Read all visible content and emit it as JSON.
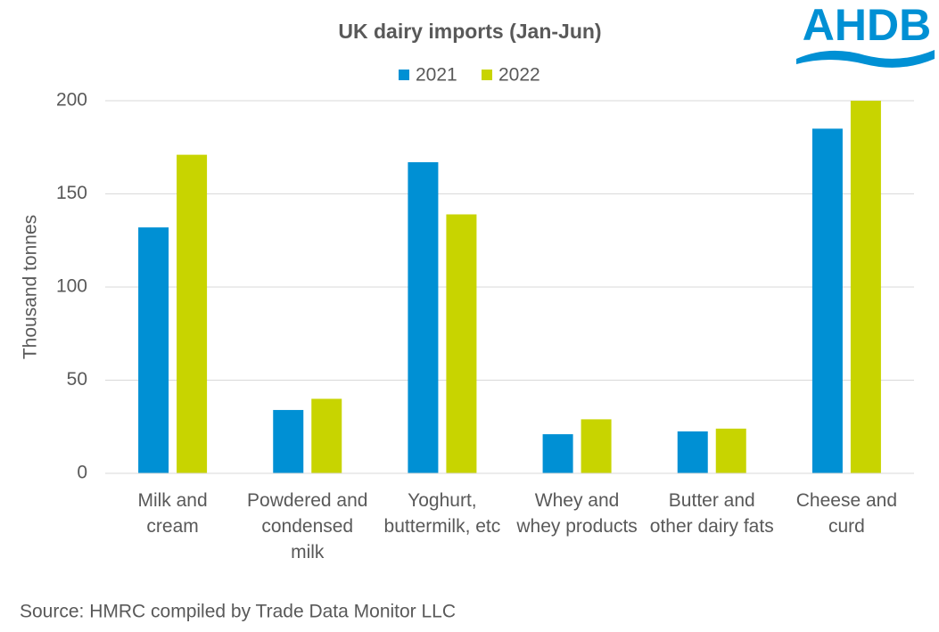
{
  "chart_data": {
    "type": "bar",
    "title": "UK dairy imports (Jan-Jun)",
    "y_label": "Thousand tonnes",
    "categories": [
      "Milk and cream",
      "Powdered and condensed milk",
      "Yoghurt, buttermilk, etc",
      "Whey and whey products",
      "Butter and other dairy fats",
      "Cheese and curd"
    ],
    "series": [
      {
        "name": "2021",
        "color": "#0090d4",
        "values": [
          132,
          34,
          167,
          21,
          22.5,
          185
        ]
      },
      {
        "name": "2022",
        "color": "#c8d400",
        "values": [
          171,
          40,
          139,
          29,
          24,
          200
        ]
      }
    ],
    "ylim": [
      0,
      200
    ],
    "yticks": [
      0,
      50,
      100,
      150,
      200
    ],
    "grid": true,
    "legend": "top"
  },
  "source": "Source: HMRC compiled by Trade Data Monitor LLC",
  "logo": "AHDB"
}
